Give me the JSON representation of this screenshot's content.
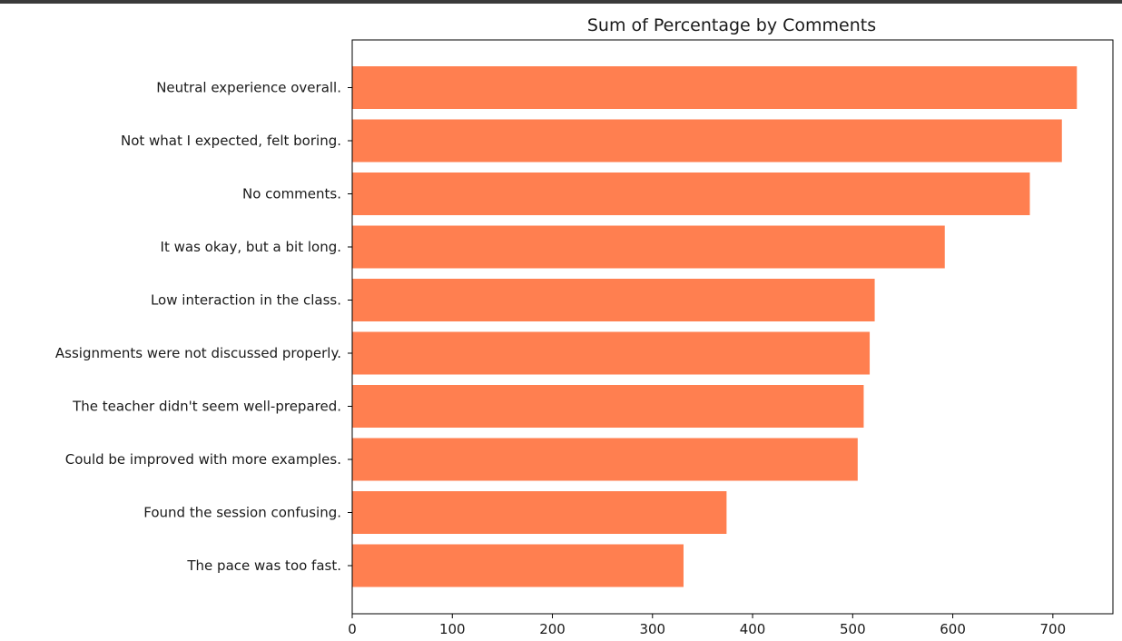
{
  "chart_data": {
    "type": "bar",
    "orientation": "horizontal",
    "title": "Sum of Percentage by Comments",
    "xlabel": "",
    "ylabel": "",
    "categories": [
      "Neutral experience overall.",
      "Not what I expected, felt boring.",
      "No comments.",
      "It was okay, but a bit long.",
      "Low interaction in the class.",
      "Assignments were not discussed properly.",
      "The teacher didn't seem well-prepared.",
      "Could be improved with more examples.",
      "Found the session confusing.",
      "The pace was too fast."
    ],
    "values": [
      724,
      709,
      677,
      592,
      522,
      517,
      511,
      505,
      374,
      331
    ],
    "xlim": [
      0,
      760
    ],
    "xticks": [
      "0",
      "100",
      "200",
      "300",
      "400",
      "500",
      "600",
      "700"
    ],
    "grid": false,
    "legend": "none",
    "bar_color": "#ff7f50"
  }
}
